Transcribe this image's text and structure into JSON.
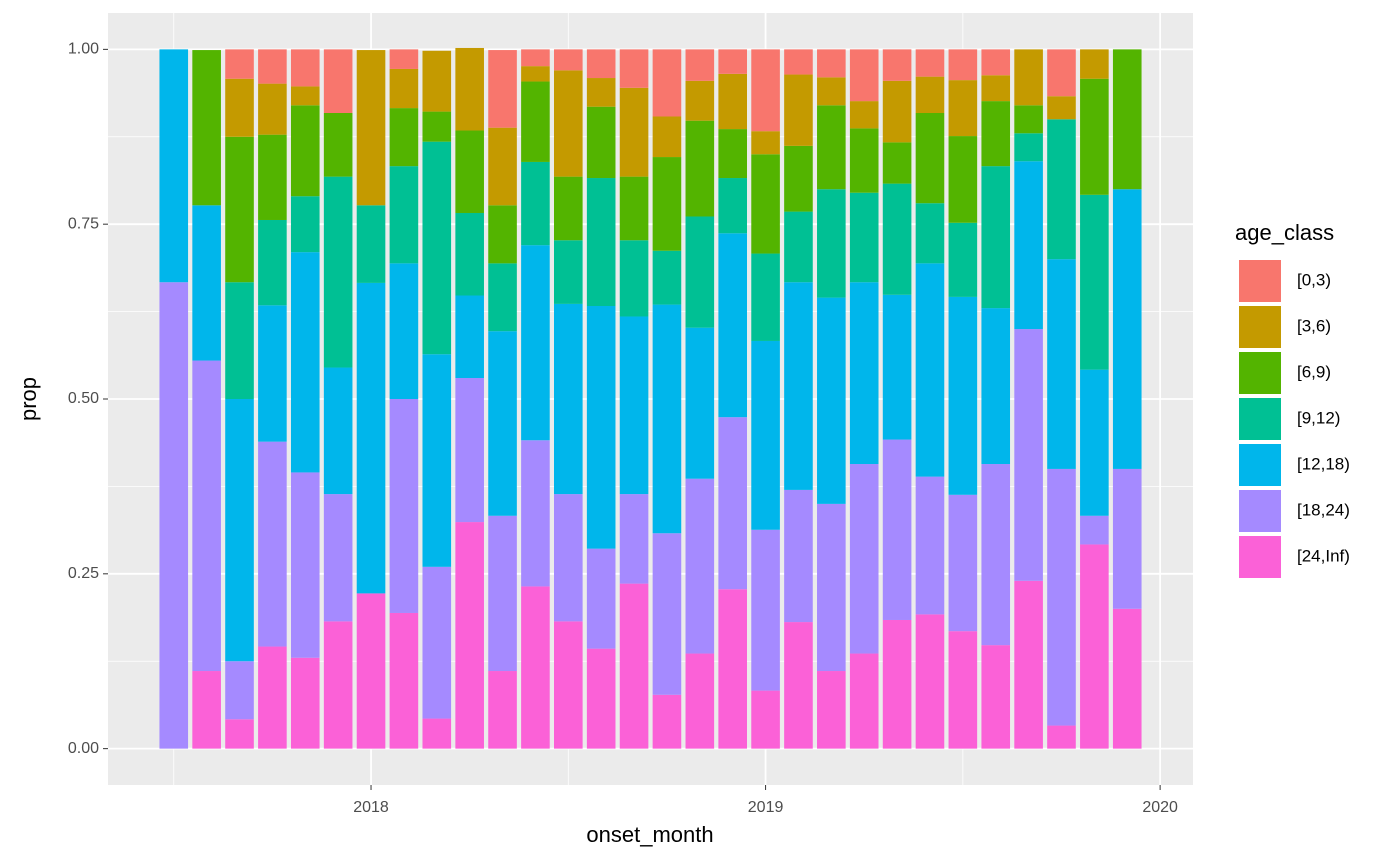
{
  "chart_data": {
    "type": "stacked_bar",
    "x_label": "onset_month",
    "y_label": "prop",
    "legend_title": "age_class",
    "legend_position": "right",
    "grid": true,
    "x": [
      "2017-07",
      "2017-08",
      "2017-09",
      "2017-10",
      "2017-11",
      "2017-12",
      "2018-01",
      "2018-02",
      "2018-03",
      "2018-04",
      "2018-05",
      "2018-06",
      "2018-07",
      "2018-08",
      "2018-09",
      "2018-10",
      "2018-11",
      "2018-12",
      "2019-01",
      "2019-02",
      "2019-03",
      "2019-04",
      "2019-05",
      "2019-06",
      "2019-07",
      "2019-08",
      "2019-09",
      "2019-10",
      "2019-11",
      "2019-12"
    ],
    "xlim": [
      "2017-05",
      "2020-02"
    ],
    "xticks": [
      {
        "value": "2018-01",
        "label": "2018"
      },
      {
        "value": "2019-01",
        "label": "2019"
      },
      {
        "value": "2020-01",
        "label": "2020"
      }
    ],
    "ylim": [
      -0.052,
      1.052
    ],
    "yticks": [
      {
        "value": 0,
        "label": "0.00"
      },
      {
        "value": 0.25,
        "label": "0.25"
      },
      {
        "value": 0.5,
        "label": "0.50"
      },
      {
        "value": 0.75,
        "label": "0.75"
      },
      {
        "value": 1,
        "label": "1.00"
      }
    ],
    "series": [
      {
        "name": "[0,3)",
        "color": "#F8766D",
        "values": [
          0,
          0,
          0.042,
          0.049,
          0.053,
          0.091,
          0,
          0.028,
          0,
          0,
          0.111,
          0.024,
          0.03,
          0.041,
          0.055,
          0.096,
          0.045,
          0.035,
          0.117,
          0.036,
          0.04,
          0.074,
          0.045,
          0.039,
          0.044,
          0.037,
          0,
          0.067,
          0,
          0
        ]
      },
      {
        "name": "[3,6)",
        "color": "#C49A00",
        "values": [
          0,
          0,
          0.083,
          0.073,
          0.027,
          0,
          0.222,
          0.056,
          0.087,
          0.118,
          0.111,
          0.022,
          0.152,
          0.041,
          0.127,
          0.058,
          0.057,
          0.079,
          0.033,
          0.102,
          0.04,
          0.039,
          0.088,
          0.052,
          0.08,
          0.037,
          0.08,
          0.033,
          0.042,
          0
        ]
      },
      {
        "name": "[6,9)",
        "color": "#53B400",
        "values": [
          0,
          0.222,
          0.208,
          0.122,
          0.13,
          0.091,
          0,
          0.083,
          0.043,
          0.118,
          0.083,
          0.115,
          0.091,
          0.102,
          0.091,
          0.134,
          0.137,
          0.07,
          0.142,
          0.094,
          0.12,
          0.092,
          0.059,
          0.129,
          0.124,
          0.093,
          0.04,
          0,
          0.166,
          0.2
        ]
      },
      {
        "name": "[9,12)",
        "color": "#00C094",
        "values": [
          0,
          0,
          0.167,
          0.122,
          0.08,
          0.273,
          0.111,
          0.139,
          0.304,
          0.118,
          0.097,
          0.119,
          0.091,
          0.183,
          0.109,
          0.077,
          0.159,
          0.079,
          0.125,
          0.101,
          0.155,
          0.128,
          0.159,
          0.086,
          0.106,
          0.203,
          0.04,
          0.2,
          0.25,
          0
        ]
      },
      {
        "name": "[12,18)",
        "color": "#00B6EB",
        "values": [
          0.333,
          0.222,
          0.375,
          0.195,
          0.315,
          0.181,
          0.444,
          0.194,
          0.304,
          0.118,
          0.264,
          0.279,
          0.272,
          0.347,
          0.254,
          0.327,
          0.216,
          0.263,
          0.27,
          0.297,
          0.295,
          0.26,
          0.207,
          0.305,
          0.283,
          0.223,
          0.24,
          0.3,
          0.209,
          0.4
        ]
      },
      {
        "name": "[18,24)",
        "color": "#A58AFF",
        "values": [
          0.667,
          0.444,
          0.083,
          0.293,
          0.265,
          0.182,
          0,
          0.306,
          0.217,
          0.206,
          0.222,
          0.209,
          0.182,
          0.143,
          0.128,
          0.231,
          0.25,
          0.246,
          0.23,
          0.189,
          0.239,
          0.271,
          0.258,
          0.197,
          0.195,
          0.259,
          0.36,
          0.367,
          0.041,
          0.2
        ]
      },
      {
        "name": "[24,Inf)",
        "color": "#FB61D7",
        "values": [
          0,
          0.111,
          0.042,
          0.146,
          0.13,
          0.182,
          0.222,
          0.194,
          0.043,
          0.324,
          0.111,
          0.232,
          0.182,
          0.143,
          0.236,
          0.077,
          0.136,
          0.228,
          0.083,
          0.181,
          0.111,
          0.136,
          0.184,
          0.192,
          0.168,
          0.148,
          0.24,
          0.033,
          0.292,
          0.2
        ]
      }
    ]
  }
}
